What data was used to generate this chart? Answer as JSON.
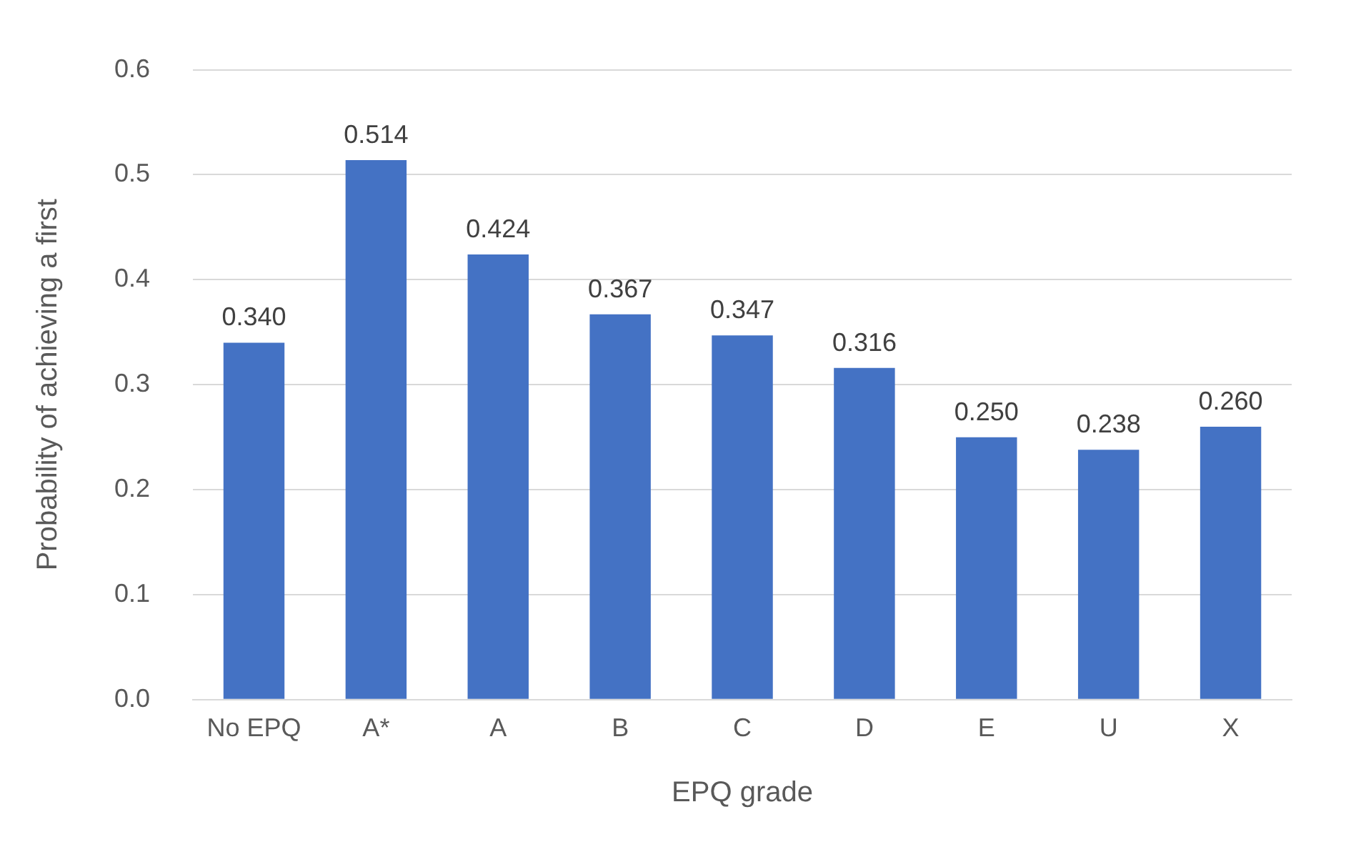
{
  "chart_data": {
    "type": "bar",
    "xlabel": "EPQ grade",
    "ylabel": "Probability of achieving a first",
    "categories": [
      "No EPQ",
      "A*",
      "A",
      "B",
      "C",
      "D",
      "E",
      "U",
      "X"
    ],
    "values": [
      0.34,
      0.514,
      0.424,
      0.367,
      0.347,
      0.316,
      0.25,
      0.238,
      0.26
    ],
    "value_labels": [
      "0.340",
      "0.514",
      "0.424",
      "0.367",
      "0.347",
      "0.316",
      "0.250",
      "0.238",
      "0.260"
    ],
    "color": "#4472c4",
    "ylim": [
      0,
      0.6
    ],
    "yticks": [
      {
        "value": 0,
        "label": "0.0"
      },
      {
        "value": 0.1,
        "label": "0.1"
      },
      {
        "value": 0.2,
        "label": "0.2"
      },
      {
        "value": 0.3,
        "label": "0.3"
      },
      {
        "value": 0.4,
        "label": "0.4"
      },
      {
        "value": 0.5,
        "label": "0.5"
      },
      {
        "value": 0.6,
        "label": "0.6"
      }
    ],
    "grid": "y",
    "legend": false
  }
}
